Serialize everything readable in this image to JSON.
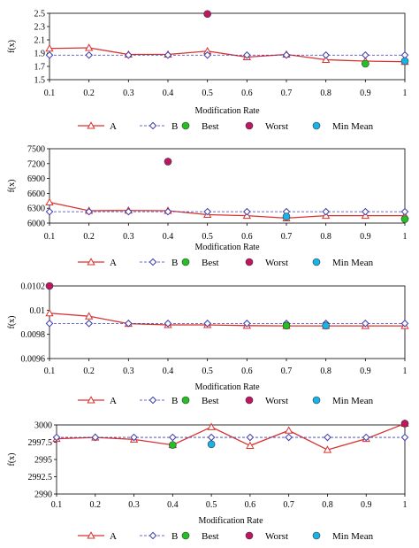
{
  "colors": {
    "A": "#d9332f",
    "B": "#3a3ab0",
    "Best": "#22c022",
    "Worst": "#c01560",
    "MinMean": "#18b4e8",
    "frame": "#000000"
  },
  "legend": [
    "A",
    "B",
    "Best",
    "Worst",
    "Min Mean"
  ],
  "chart_data": [
    {
      "type": "line",
      "xlabel": "Modification Rate",
      "ylabel": "f(x)",
      "x": [
        0.1,
        0.2,
        0.3,
        0.4,
        0.5,
        0.6,
        0.7,
        0.8,
        0.9,
        1
      ],
      "x_ticks": [
        "0.1",
        "0.2",
        "0.3",
        "0.4",
        "0.5",
        "0.6",
        "0.7",
        "0.8",
        "0.9",
        "1"
      ],
      "ylim": [
        1.5,
        2.5
      ],
      "y_ticks": [
        1.5,
        1.7,
        1.9,
        2.1,
        2.3,
        2.5
      ],
      "y_tick_labels": [
        "1.5",
        "1.7",
        "1.9",
        "2.1",
        "2.3",
        "2.5"
      ],
      "series": [
        {
          "name": "A",
          "values": [
            1.97,
            1.98,
            1.88,
            1.88,
            1.93,
            1.84,
            1.88,
            1.8,
            1.78,
            1.77
          ]
        },
        {
          "name": "B",
          "values": [
            1.87,
            1.87,
            1.87,
            1.87,
            1.87,
            1.87,
            1.87,
            1.87,
            1.87,
            1.87
          ]
        }
      ],
      "best": [
        {
          "x": 0.9,
          "y": 1.74
        }
      ],
      "worst": [
        {
          "x": 0.5,
          "y": 2.49
        }
      ],
      "min_mean": [
        {
          "x": 1,
          "y": 1.78
        }
      ]
    },
    {
      "type": "line",
      "xlabel": "Modification Rate",
      "ylabel": "f(x)",
      "x": [
        0.1,
        0.2,
        0.3,
        0.4,
        0.5,
        0.6,
        0.7,
        0.8,
        0.9,
        1
      ],
      "x_ticks": [
        "0.1",
        "0.2",
        "0.3",
        "0.4",
        "0.5",
        "0.6",
        "0.7",
        "0.8",
        "0.9",
        "1"
      ],
      "ylim": [
        6000,
        7500
      ],
      "y_ticks": [
        6000,
        6300,
        6600,
        6900,
        7200,
        7500
      ],
      "y_tick_labels": [
        "6000",
        "6300",
        "6600",
        "6900",
        "7200",
        "7500"
      ],
      "series": [
        {
          "name": "A",
          "values": [
            6420,
            6250,
            6255,
            6250,
            6170,
            6150,
            6100,
            6150,
            6150,
            6150
          ]
        },
        {
          "name": "B",
          "values": [
            6230,
            6230,
            6230,
            6230,
            6230,
            6230,
            6230,
            6230,
            6230,
            6230
          ]
        }
      ],
      "best": [
        {
          "x": 1,
          "y": 6080
        }
      ],
      "worst": [
        {
          "x": 0.4,
          "y": 7240
        }
      ],
      "min_mean": [
        {
          "x": 0.7,
          "y": 6130
        }
      ]
    },
    {
      "type": "line",
      "xlabel": "Modification Rate",
      "ylabel": "f(x)",
      "x": [
        0.1,
        0.2,
        0.3,
        0.4,
        0.5,
        0.6,
        0.7,
        0.8,
        0.9,
        1
      ],
      "x_ticks": [
        "0.1",
        "0.2",
        "0.3",
        "0.4",
        "0.5",
        "0.6",
        "0.7",
        "0.8",
        "0.9",
        "1"
      ],
      "ylim": [
        0.0096,
        0.0102
      ],
      "y_ticks": [
        0.0096,
        0.0098,
        0.01,
        0.0102
      ],
      "y_tick_labels": [
        "0.0096",
        "0.0098",
        "0.01",
        "0.0102"
      ],
      "series": [
        {
          "name": "A",
          "values": [
            0.009975,
            0.00995,
            0.009888,
            0.009878,
            0.009878,
            0.009872,
            0.00987,
            0.00987,
            0.00987,
            0.00987
          ]
        },
        {
          "name": "B",
          "values": [
            0.00989,
            0.00989,
            0.00989,
            0.00989,
            0.00989,
            0.00989,
            0.00989,
            0.00989,
            0.00989,
            0.00989
          ]
        }
      ],
      "best": [
        {
          "x": 0.7,
          "y": 0.009872
        }
      ],
      "worst": [
        {
          "x": 0.1,
          "y": 0.0102
        }
      ],
      "min_mean": [
        {
          "x": 0.8,
          "y": 0.009872
        }
      ]
    },
    {
      "type": "line",
      "xlabel": "Modification Rate",
      "ylabel": "f(x)",
      "x": [
        0.1,
        0.2,
        0.3,
        0.4,
        0.5,
        0.6,
        0.7,
        0.8,
        0.9,
        1
      ],
      "x_ticks": [
        "0.1",
        "0.2",
        "0.3",
        "0.4",
        "0.5",
        "0.6",
        "0.7",
        "0.8",
        "0.9",
        "1"
      ],
      "ylim": [
        2990,
        3000
      ],
      "y_ticks": [
        2990,
        2992.5,
        2995,
        2997.5,
        3000
      ],
      "y_tick_labels": [
        "2990",
        "2992.5",
        "2995",
        "2997.5",
        "3000"
      ],
      "series": [
        {
          "name": "A",
          "values": [
            2998.0,
            2998.2,
            2997.9,
            2997.1,
            2999.7,
            2997.0,
            2999.2,
            2996.4,
            2998.0,
            3000.2
          ]
        },
        {
          "name": "B",
          "values": [
            2998.2,
            2998.2,
            2998.2,
            2998.2,
            2998.2,
            2998.2,
            2998.2,
            2998.2,
            2998.2,
            2998.2
          ]
        }
      ],
      "best": [
        {
          "x": 0.4,
          "y": 2997.1
        }
      ],
      "worst": [
        {
          "x": 1,
          "y": 3000.2
        }
      ],
      "min_mean": [
        {
          "x": 0.5,
          "y": 2997.2
        }
      ]
    }
  ]
}
